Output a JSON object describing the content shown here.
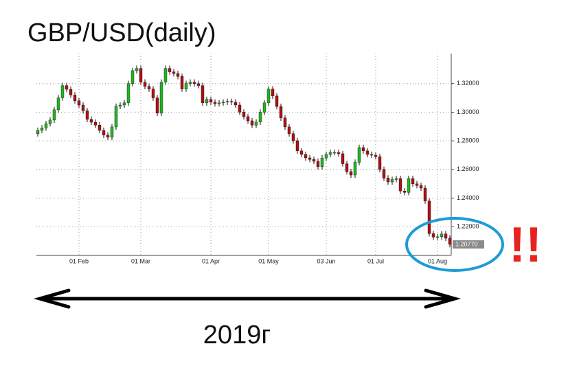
{
  "chart_data": {
    "type": "candlestick",
    "title": "GBP/USD(daily)",
    "period_label": "2019г",
    "annotation": "!!",
    "categories": [
      null,
      null,
      null,
      null,
      null,
      null,
      null,
      null,
      null,
      null,
      "01 Feb",
      null,
      null,
      null,
      null,
      null,
      null,
      null,
      null,
      null,
      null,
      null,
      null,
      null,
      null,
      "01 Mar",
      null,
      null,
      null,
      null,
      null,
      null,
      null,
      null,
      null,
      null,
      null,
      null,
      null,
      null,
      null,
      null,
      "01 Apr",
      null,
      null,
      null,
      null,
      null,
      null,
      null,
      null,
      null,
      null,
      null,
      null,
      null,
      "01 May",
      null,
      null,
      null,
      null,
      null,
      null,
      null,
      null,
      null,
      null,
      null,
      null,
      null,
      "03 Jun",
      null,
      null,
      null,
      null,
      null,
      null,
      null,
      null,
      null,
      null,
      null,
      "01 Jul",
      null,
      null,
      null,
      null,
      null,
      null,
      null,
      null,
      null,
      null,
      null,
      null,
      null,
      null,
      "01 Aug",
      null,
      null,
      null
    ],
    "open": [
      1.285,
      1.2873,
      1.289,
      1.292,
      1.2945,
      1.3017,
      1.31,
      1.3186,
      1.316,
      1.312,
      1.308,
      1.305,
      1.301,
      1.295,
      1.293,
      1.291,
      1.2873,
      1.284,
      1.2825,
      1.2897,
      1.3041,
      1.305,
      1.3065,
      1.32,
      1.329,
      1.3306,
      1.321,
      1.318,
      1.3162,
      1.31,
      1.2993,
      1.321,
      1.3306,
      1.3282,
      1.327,
      1.325,
      1.3162,
      1.32,
      1.321,
      1.32,
      1.3186,
      1.3065,
      1.3089,
      1.307,
      1.306,
      1.3065,
      1.307,
      1.3075,
      1.307,
      1.305,
      1.3,
      1.2969,
      1.294,
      1.291,
      1.2931,
      1.3,
      1.3065,
      1.3162,
      1.3113,
      1.304,
      1.296,
      1.2897,
      1.285,
      1.2801,
      1.273,
      1.2705,
      1.2681,
      1.267,
      1.2657,
      1.262,
      1.268,
      1.2705,
      1.2719,
      1.2719,
      1.271,
      1.264,
      1.2585,
      1.2561,
      1.265,
      1.2753,
      1.273,
      1.2705,
      1.27,
      1.269,
      1.26,
      1.254,
      1.2513,
      1.253,
      1.2537,
      1.245,
      1.244,
      1.2537,
      1.25,
      1.2488,
      1.247,
      1.238,
      1.2152,
      1.2128,
      1.213,
      1.215,
      1.212
    ],
    "high": [
      1.2893,
      1.291,
      1.294,
      1.2965,
      1.3037,
      1.312,
      1.3206,
      1.3206,
      1.318,
      1.314,
      1.31,
      1.307,
      1.303,
      1.297,
      1.295,
      1.293,
      1.2893,
      1.286,
      1.2917,
      1.3061,
      1.307,
      1.3085,
      1.322,
      1.331,
      1.3326,
      1.3326,
      1.323,
      1.32,
      1.3182,
      1.312,
      1.323,
      1.3326,
      1.3326,
      1.3302,
      1.329,
      1.327,
      1.322,
      1.323,
      1.323,
      1.322,
      1.3206,
      1.3109,
      1.3109,
      1.309,
      1.3085,
      1.309,
      1.3095,
      1.3095,
      1.309,
      1.307,
      1.302,
      1.2989,
      1.296,
      1.2951,
      1.302,
      1.3085,
      1.3182,
      1.3182,
      1.3133,
      1.306,
      1.298,
      1.2917,
      1.287,
      1.2821,
      1.275,
      1.2725,
      1.2701,
      1.269,
      1.2677,
      1.27,
      1.2725,
      1.2739,
      1.2739,
      1.2739,
      1.273,
      1.266,
      1.2605,
      1.267,
      1.2773,
      1.2773,
      1.275,
      1.2725,
      1.272,
      1.271,
      1.262,
      1.256,
      1.255,
      1.2557,
      1.2557,
      1.247,
      1.2557,
      1.2557,
      1.252,
      1.2508,
      1.249,
      1.24,
      1.2172,
      1.215,
      1.217,
      1.217,
      1.214
    ],
    "low": [
      1.283,
      1.2853,
      1.287,
      1.29,
      1.2925,
      1.2997,
      1.308,
      1.314,
      1.31,
      1.306,
      1.303,
      1.299,
      1.293,
      1.291,
      1.289,
      1.2853,
      1.282,
      1.2805,
      1.2805,
      1.2877,
      1.3021,
      1.303,
      1.3045,
      1.318,
      1.327,
      1.319,
      1.316,
      1.3142,
      1.308,
      1.2973,
      1.2973,
      1.319,
      1.3262,
      1.325,
      1.323,
      1.3142,
      1.3142,
      1.318,
      1.318,
      1.3166,
      1.3045,
      1.3045,
      1.305,
      1.304,
      1.304,
      1.3045,
      1.305,
      1.305,
      1.303,
      1.298,
      1.2949,
      1.292,
      1.289,
      1.289,
      1.2911,
      1.298,
      1.3045,
      1.3093,
      1.302,
      1.294,
      1.2877,
      1.283,
      1.2781,
      1.271,
      1.2685,
      1.2661,
      1.265,
      1.2637,
      1.26,
      1.26,
      1.266,
      1.2685,
      1.2699,
      1.269,
      1.262,
      1.2565,
      1.2541,
      1.2541,
      1.263,
      1.271,
      1.2685,
      1.268,
      1.267,
      1.258,
      1.252,
      1.2493,
      1.2493,
      1.251,
      1.243,
      1.242,
      1.242,
      1.248,
      1.2468,
      1.245,
      1.236,
      1.2132,
      1.2108,
      1.2108,
      1.211,
      1.21,
      1.2057
    ],
    "close": [
      1.2873,
      1.289,
      1.292,
      1.2945,
      1.3017,
      1.31,
      1.3186,
      1.316,
      1.312,
      1.308,
      1.305,
      1.301,
      1.295,
      1.293,
      1.291,
      1.2873,
      1.284,
      1.2825,
      1.2897,
      1.3041,
      1.305,
      1.3065,
      1.32,
      1.329,
      1.3306,
      1.321,
      1.318,
      1.3162,
      1.31,
      1.2993,
      1.321,
      1.3306,
      1.3282,
      1.327,
      1.325,
      1.3162,
      1.32,
      1.321,
      1.32,
      1.3186,
      1.3065,
      1.3089,
      1.307,
      1.306,
      1.3065,
      1.307,
      1.3075,
      1.307,
      1.305,
      1.3,
      1.2969,
      1.294,
      1.291,
      1.2931,
      1.3,
      1.3065,
      1.3162,
      1.3113,
      1.304,
      1.296,
      1.2897,
      1.285,
      1.2801,
      1.273,
      1.2705,
      1.2681,
      1.267,
      1.2657,
      1.262,
      1.268,
      1.2705,
      1.2719,
      1.2719,
      1.271,
      1.264,
      1.2585,
      1.2561,
      1.265,
      1.2753,
      1.273,
      1.2705,
      1.27,
      1.269,
      1.26,
      1.254,
      1.2513,
      1.253,
      1.2537,
      1.245,
      1.244,
      1.2537,
      1.25,
      1.2488,
      1.247,
      1.238,
      1.2152,
      1.2128,
      1.213,
      1.215,
      1.212,
      1.2077
    ],
    "up_color": "#22b422",
    "down_color": "#b01010",
    "last_price": {
      "value": 1.2077,
      "label": "1.20770"
    },
    "ylim": [
      1.2,
      1.34
    ],
    "yticks": [
      {
        "value": 1.22,
        "label": "1.22000"
      },
      {
        "value": 1.24,
        "label": "1.24000"
      },
      {
        "value": 1.26,
        "label": "1.26000"
      },
      {
        "value": 1.28,
        "label": "1.28000"
      },
      {
        "value": 1.3,
        "label": "1.30000"
      },
      {
        "value": 1.32,
        "label": "1.32000"
      }
    ],
    "grid": true
  }
}
